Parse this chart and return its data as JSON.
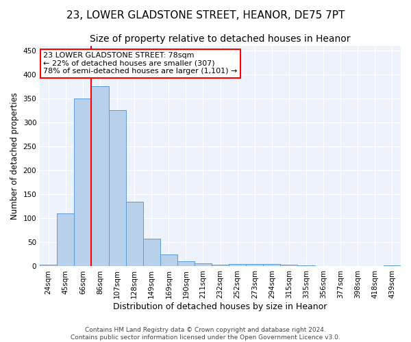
{
  "title1": "23, LOWER GLADSTONE STREET, HEANOR, DE75 7PT",
  "title2": "Size of property relative to detached houses in Heanor",
  "xlabel": "Distribution of detached houses by size in Heanor",
  "ylabel": "Number of detached properties",
  "footer1": "Contains HM Land Registry data © Crown copyright and database right 2024.",
  "footer2": "Contains public sector information licensed under the Open Government Licence v3.0.",
  "categories": [
    "24sqm",
    "45sqm",
    "66sqm",
    "86sqm",
    "107sqm",
    "128sqm",
    "149sqm",
    "169sqm",
    "190sqm",
    "211sqm",
    "232sqm",
    "252sqm",
    "273sqm",
    "294sqm",
    "315sqm",
    "335sqm",
    "356sqm",
    "377sqm",
    "398sqm",
    "418sqm",
    "439sqm"
  ],
  "values": [
    4,
    110,
    350,
    375,
    325,
    135,
    57,
    25,
    10,
    6,
    3,
    5,
    5,
    5,
    3,
    2,
    1,
    0,
    0,
    0,
    2
  ],
  "bar_color": "#b8d0ea",
  "bar_edge_color": "#5b9bd5",
  "vline_x_index": 2.5,
  "vline_color": "red",
  "annotation_line1": "23 LOWER GLADSTONE STREET: 78sqm",
  "annotation_line2": "← 22% of detached houses are smaller (307)",
  "annotation_line3": "78% of semi-detached houses are larger (1,101) →",
  "annotation_box_color": "white",
  "annotation_box_edge": "red",
  "ylim": [
    0,
    460
  ],
  "yticks": [
    0,
    50,
    100,
    150,
    200,
    250,
    300,
    350,
    400,
    450
  ],
  "bg_color": "#eef2fa",
  "grid_color": "white",
  "title1_fontsize": 11,
  "title2_fontsize": 10,
  "xlabel_fontsize": 9,
  "ylabel_fontsize": 8.5,
  "footer_fontsize": 6.5,
  "tick_fontsize": 7.5,
  "annot_fontsize": 8
}
